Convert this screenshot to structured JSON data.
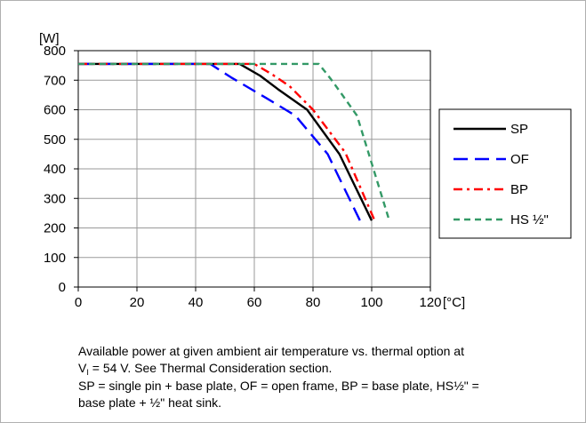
{
  "chart_data": {
    "type": "line",
    "ylabel": "[W]",
    "xlabel": "[°C]",
    "xlim": [
      0,
      120
    ],
    "ylim": [
      0,
      800
    ],
    "xticks": [
      0,
      20,
      40,
      60,
      80,
      100,
      120
    ],
    "yticks": [
      0,
      100,
      200,
      300,
      400,
      500,
      600,
      700,
      800
    ],
    "grid": true,
    "legend_position": "right",
    "series": [
      {
        "name": "SP",
        "color": "#000000",
        "dash": "solid",
        "x": [
          0,
          55,
          62,
          68,
          78,
          89,
          100
        ],
        "y": [
          755,
          755,
          715,
          670,
          600,
          450,
          225
        ]
      },
      {
        "name": "OF",
        "color": "#0000ff",
        "dash": "dash",
        "x": [
          0,
          45,
          52,
          64,
          74,
          85,
          96
        ],
        "y": [
          755,
          755,
          710,
          640,
          580,
          450,
          225
        ]
      },
      {
        "name": "BP",
        "color": "#ff0000",
        "dash": "dashdot",
        "x": [
          0,
          60,
          66,
          72,
          80,
          91,
          101
        ],
        "y": [
          755,
          755,
          720,
          680,
          600,
          455,
          225
        ]
      },
      {
        "name": "HS ½\"",
        "color": "#339966",
        "dash": "shortdash",
        "x": [
          0,
          82,
          86,
          90,
          95,
          106
        ],
        "y": [
          755,
          755,
          705,
          650,
          580,
          225
        ]
      }
    ]
  },
  "caption": {
    "line1": "Available power at given ambient air temperature vs. thermal option at",
    "line2_prefix": "V",
    "line2_sub": "I",
    "line2_rest": " = 54 V. See Thermal Consideration section.",
    "line3": "SP = single pin + base plate, OF = open frame, BP = base plate, HS½\" =",
    "line4": "base plate + ½\" heat sink."
  }
}
